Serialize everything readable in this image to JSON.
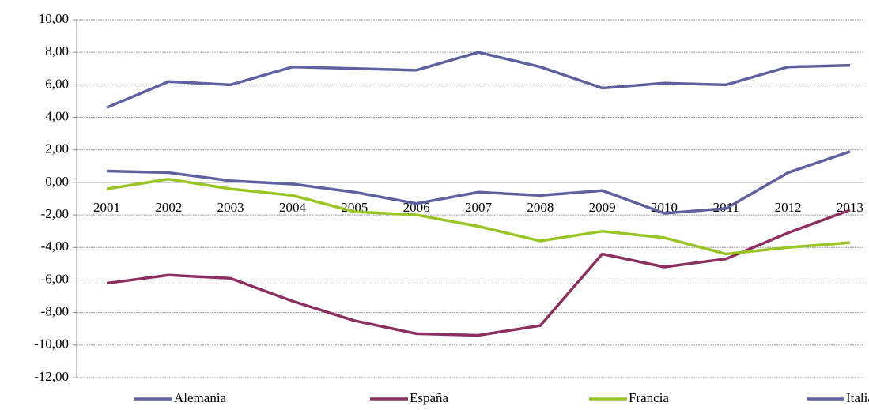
{
  "chart_data": {
    "type": "line",
    "categories": [
      "2001",
      "2002",
      "2003",
      "2004",
      "2005",
      "2006",
      "2007",
      "2008",
      "2009",
      "2010",
      "2011",
      "2012",
      "2013"
    ],
    "series": [
      {
        "name": "Alemania",
        "color": "#5e609f",
        "values": [
          4.6,
          6.2,
          6.0,
          7.1,
          7.0,
          6.9,
          8.0,
          7.1,
          5.8,
          6.1,
          6.0,
          7.1,
          7.2
        ]
      },
      {
        "name": "España",
        "color": "#8b305e",
        "values": [
          -6.2,
          -5.7,
          -5.9,
          -7.3,
          -8.5,
          -9.3,
          -9.4,
          -8.8,
          -4.4,
          -5.2,
          -4.7,
          -3.1,
          -1.7
        ]
      },
      {
        "name": "Francia",
        "color": "#9ac424",
        "values": [
          -0.4,
          0.2,
          -0.4,
          -0.8,
          -1.8,
          -2.0,
          -2.7,
          -3.6,
          -3.0,
          -3.4,
          -4.4,
          -4.0,
          -3.7
        ]
      },
      {
        "name": "Italia",
        "color": "#5e609f",
        "values": [
          0.7,
          0.6,
          0.1,
          -0.1,
          -0.6,
          -1.3,
          -0.6,
          -0.8,
          -0.5,
          -1.9,
          -1.6,
          0.6,
          1.9
        ]
      }
    ],
    "ylim": [
      -12,
      10
    ],
    "yticks": [
      {
        "value": -12,
        "label": "-12,00"
      },
      {
        "value": -10,
        "label": "-10,00"
      },
      {
        "value": -8,
        "label": "-8,00"
      },
      {
        "value": -6,
        "label": "-6,00"
      },
      {
        "value": -4,
        "label": "-4,00"
      },
      {
        "value": -2,
        "label": "-2,00"
      },
      {
        "value": 0,
        "label": "0,00"
      },
      {
        "value": 2,
        "label": "2,00"
      },
      {
        "value": 4,
        "label": "4,00"
      },
      {
        "value": 6,
        "label": "6,00"
      },
      {
        "value": 8,
        "label": "8,00"
      },
      {
        "value": 10,
        "label": "10,00"
      }
    ],
    "grid": true,
    "legend_position": "bottom"
  }
}
